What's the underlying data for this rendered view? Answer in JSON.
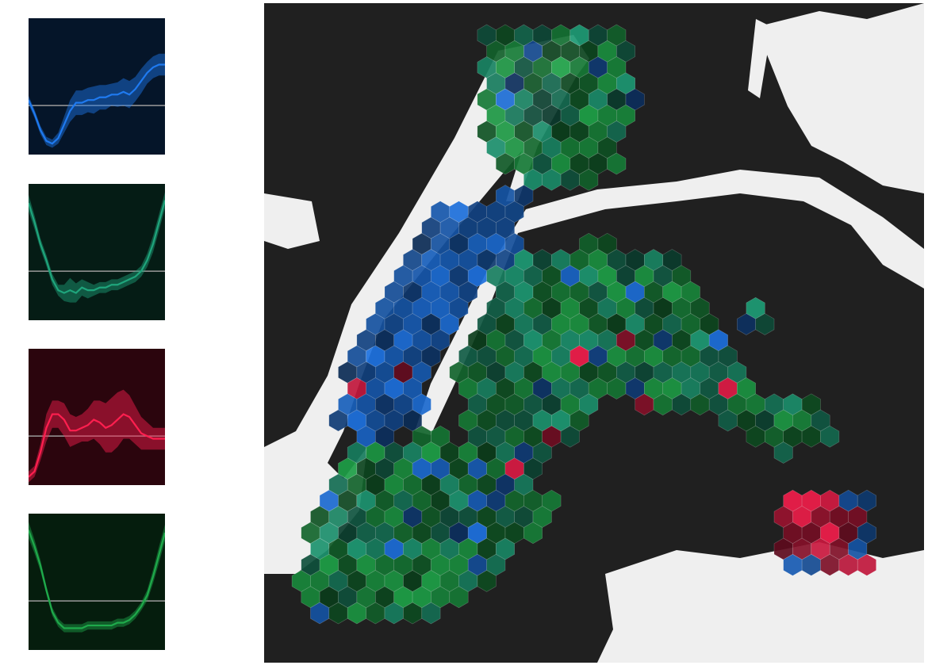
{
  "colors": {
    "blue": "#1f7af0",
    "teal": "#1fa57c",
    "red": "#ff1f4f",
    "green": "#1faa4b",
    "land": "#202020",
    "water": "#efefef",
    "baseline": "#9a9a9a"
  },
  "chart_data": [
    {
      "type": "line",
      "series": [
        {
          "color": "blue",
          "x": [
            0,
            1,
            2,
            3,
            4,
            5,
            6,
            7,
            8,
            9,
            10,
            11,
            12,
            13,
            14,
            15,
            16,
            17,
            18,
            19,
            20,
            21,
            22,
            23
          ],
          "values": [
            0.2,
            -0.3,
            -0.9,
            -1.3,
            -1.4,
            -1.2,
            -0.7,
            -0.2,
            0.1,
            0.1,
            0.2,
            0.2,
            0.3,
            0.3,
            0.4,
            0.4,
            0.5,
            0.4,
            0.6,
            0.9,
            1.2,
            1.4,
            1.5,
            1.5
          ],
          "band": [
            0.15,
            0.15,
            0.15,
            0.15,
            0.15,
            0.2,
            0.3,
            0.4,
            0.45,
            0.45,
            0.45,
            0.5,
            0.45,
            0.45,
            0.4,
            0.45,
            0.5,
            0.5,
            0.45,
            0.45,
            0.4,
            0.4,
            0.4,
            0.4
          ]
        }
      ],
      "ylim": [
        -1.8,
        3.2
      ],
      "baseline": 0
    },
    {
      "type": "line",
      "series": [
        {
          "color": "teal",
          "x": [
            0,
            1,
            2,
            3,
            4,
            5,
            6,
            7,
            8,
            9,
            10,
            11,
            12,
            13,
            14,
            15,
            16,
            17,
            18,
            19,
            20,
            21,
            22,
            23
          ],
          "values": [
            2.5,
            1.8,
            1.0,
            0.4,
            -0.3,
            -0.7,
            -0.8,
            -0.7,
            -0.8,
            -0.6,
            -0.7,
            -0.7,
            -0.6,
            -0.6,
            -0.5,
            -0.5,
            -0.4,
            -0.3,
            -0.2,
            0.0,
            0.4,
            1.0,
            1.8,
            2.6
          ],
          "band": [
            0.3,
            0.25,
            0.2,
            0.2,
            0.2,
            0.2,
            0.3,
            0.45,
            0.35,
            0.3,
            0.3,
            0.2,
            0.2,
            0.2,
            0.2,
            0.2,
            0.2,
            0.2,
            0.2,
            0.2,
            0.25,
            0.3,
            0.3,
            0.3
          ]
        }
      ],
      "ylim": [
        -1.8,
        3.2
      ],
      "baseline": 0
    },
    {
      "type": "line",
      "series": [
        {
          "color": "red",
          "x": [
            0,
            1,
            2,
            3,
            4,
            5,
            6,
            7,
            8,
            9,
            10,
            11,
            12,
            13,
            14,
            15,
            16,
            17,
            18,
            19,
            20,
            21,
            22,
            23
          ],
          "values": [
            -1.5,
            -1.3,
            -0.6,
            0.3,
            0.8,
            0.8,
            0.6,
            0.2,
            0.2,
            0.3,
            0.4,
            0.6,
            0.5,
            0.3,
            0.4,
            0.6,
            0.8,
            0.7,
            0.4,
            0.1,
            0.0,
            -0.1,
            -0.1,
            -0.1
          ],
          "band": [
            0.2,
            0.2,
            0.3,
            0.5,
            0.5,
            0.5,
            0.6,
            0.6,
            0.5,
            0.5,
            0.6,
            0.7,
            0.8,
            0.9,
            1.0,
            1.0,
            0.9,
            0.8,
            0.7,
            0.6,
            0.5,
            0.4,
            0.4,
            0.4
          ]
        }
      ],
      "ylim": [
        -1.8,
        3.2
      ],
      "baseline": 0
    },
    {
      "type": "line",
      "series": [
        {
          "color": "green",
          "x": [
            0,
            1,
            2,
            3,
            4,
            5,
            6,
            7,
            8,
            9,
            10,
            11,
            12,
            13,
            14,
            15,
            16,
            17,
            18,
            19,
            20,
            21,
            22,
            23
          ],
          "values": [
            2.6,
            2.0,
            1.3,
            0.4,
            -0.4,
            -0.8,
            -1.0,
            -1.0,
            -1.0,
            -1.0,
            -0.9,
            -0.9,
            -0.9,
            -0.9,
            -0.9,
            -0.8,
            -0.8,
            -0.7,
            -0.5,
            -0.2,
            0.2,
            0.9,
            1.7,
            2.5
          ],
          "band": [
            0.3,
            0.25,
            0.2,
            0.15,
            0.15,
            0.15,
            0.15,
            0.15,
            0.15,
            0.15,
            0.15,
            0.15,
            0.15,
            0.15,
            0.15,
            0.15,
            0.15,
            0.15,
            0.15,
            0.15,
            0.2,
            0.25,
            0.3,
            0.3
          ]
        }
      ],
      "ylim": [
        -1.8,
        3.2
      ],
      "baseline": 0
    },
    {
      "type": "heatmap",
      "cell_shape": "hexagon",
      "categories": [
        "blue",
        "teal",
        "red",
        "green"
      ]
    }
  ]
}
